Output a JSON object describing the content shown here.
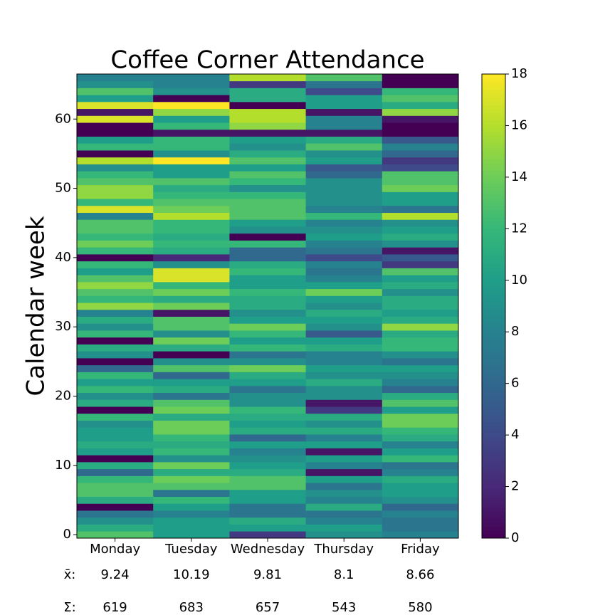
{
  "chart_data": {
    "type": "heatmap",
    "title": "Coffee Corner Attendance",
    "ylabel": "Calendar week",
    "categories": [
      "Monday",
      "Tuesday",
      "Wednesday",
      "Thursday",
      "Friday"
    ],
    "y": [
      0,
      1,
      2,
      3,
      4,
      5,
      6,
      7,
      8,
      9,
      10,
      11,
      12,
      13,
      14,
      15,
      16,
      17,
      18,
      19,
      20,
      21,
      22,
      23,
      24,
      25,
      26,
      27,
      28,
      29,
      30,
      31,
      32,
      33,
      34,
      35,
      36,
      37,
      38,
      39,
      40,
      41,
      42,
      43,
      44,
      45,
      46,
      47,
      48,
      49,
      50,
      51,
      52,
      53,
      54,
      55,
      56,
      57,
      58,
      59,
      60,
      61,
      62,
      63,
      64,
      65,
      66
    ],
    "values": [
      [
        13,
        10,
        3,
        9,
        8
      ],
      [
        11,
        10,
        10,
        10,
        7
      ],
      [
        9,
        10,
        11,
        8,
        7
      ],
      [
        7,
        8,
        7,
        7,
        8
      ],
      [
        0,
        10,
        7,
        11,
        6
      ],
      [
        11,
        12,
        10,
        8,
        9
      ],
      [
        13,
        7,
        10,
        9,
        10
      ],
      [
        13,
        13,
        13,
        7,
        10
      ],
      [
        12,
        14,
        13,
        10,
        11
      ],
      [
        6,
        11,
        11,
        1,
        8
      ],
      [
        11,
        14,
        10,
        8,
        7
      ],
      [
        0,
        9,
        9,
        10,
        12
      ],
      [
        10,
        12,
        8,
        1,
        10
      ],
      [
        11,
        11,
        10,
        10,
        8
      ],
      [
        10,
        12,
        6,
        8,
        11
      ],
      [
        10,
        14,
        11,
        11,
        12
      ],
      [
        9,
        14,
        10,
        9,
        14
      ],
      [
        12,
        11,
        11,
        11,
        14
      ],
      [
        0,
        14,
        12,
        3,
        10
      ],
      [
        11,
        13,
        9,
        1,
        13
      ],
      [
        9,
        7,
        9,
        9,
        11
      ],
      [
        12,
        11,
        7,
        9,
        6
      ],
      [
        10,
        10,
        10,
        11,
        8
      ],
      [
        12,
        6,
        11,
        9,
        9
      ],
      [
        6,
        13,
        14,
        10,
        10
      ],
      [
        0,
        9,
        9,
        8,
        7
      ],
      [
        9,
        0,
        7,
        8,
        9
      ],
      [
        11,
        11,
        12,
        11,
        12
      ],
      [
        0,
        14,
        10,
        10,
        12
      ],
      [
        12,
        9,
        12,
        5,
        11
      ],
      [
        9,
        13,
        14,
        9,
        15
      ],
      [
        11,
        13,
        10,
        10,
        11
      ],
      [
        8,
        1,
        9,
        11,
        10
      ],
      [
        15,
        14,
        11,
        9,
        11
      ],
      [
        12,
        11,
        11,
        10,
        11
      ],
      [
        13,
        14,
        12,
        14,
        9
      ],
      [
        15,
        12,
        10,
        10,
        11
      ],
      [
        13,
        17,
        10,
        8,
        10
      ],
      [
        10,
        17,
        12,
        7,
        13
      ],
      [
        12,
        9,
        11,
        8,
        3
      ],
      [
        0,
        2,
        6,
        4,
        5
      ],
      [
        12,
        11,
        6,
        7,
        1
      ],
      [
        14,
        12,
        12,
        8,
        9
      ],
      [
        12,
        11,
        0,
        10,
        11
      ],
      [
        13,
        12,
        9,
        9,
        10
      ],
      [
        13,
        12,
        10,
        8,
        9
      ],
      [
        8,
        16,
        13,
        12,
        16
      ],
      [
        17,
        14,
        13,
        8,
        7
      ],
      [
        12,
        13,
        13,
        9,
        10
      ],
      [
        15,
        12,
        12,
        9,
        10
      ],
      [
        15,
        11,
        9,
        9,
        14
      ],
      [
        13,
        13,
        12,
        9,
        13
      ],
      [
        12,
        10,
        13,
        6,
        13
      ],
      [
        9,
        10,
        10,
        5,
        4
      ],
      [
        16,
        18,
        13,
        10,
        3
      ],
      [
        0,
        9,
        11,
        9,
        6
      ],
      [
        12,
        12,
        9,
        13,
        8
      ],
      [
        10,
        12,
        10,
        11,
        5
      ],
      [
        0,
        1,
        1,
        1,
        0
      ],
      [
        0,
        12,
        15,
        8,
        0
      ],
      [
        17,
        10,
        16,
        8,
        1
      ],
      [
        1,
        15,
        16,
        1,
        15
      ],
      [
        17,
        18,
        0,
        10,
        11
      ],
      [
        10,
        0,
        11,
        10,
        13
      ],
      [
        13,
        9,
        11,
        4,
        12
      ],
      [
        9,
        8,
        3,
        7,
        0
      ],
      [
        8,
        8,
        16,
        13,
        0
      ]
    ],
    "ylim": [
      -0.5,
      66.5
    ],
    "yticks": [
      0,
      10,
      20,
      30,
      40,
      50,
      60
    ],
    "colormap": "viridis",
    "clim": [
      0,
      18
    ],
    "cticks": [
      0,
      2,
      4,
      6,
      8,
      10,
      12,
      14,
      16,
      18
    ],
    "stats": [
      {
        "label": "x̄:",
        "values": [
          9.24,
          10.19,
          9.81,
          8.1,
          8.66
        ]
      },
      {
        "label": "Σ:",
        "values": [
          619,
          683,
          657,
          543,
          580
        ]
      }
    ]
  }
}
